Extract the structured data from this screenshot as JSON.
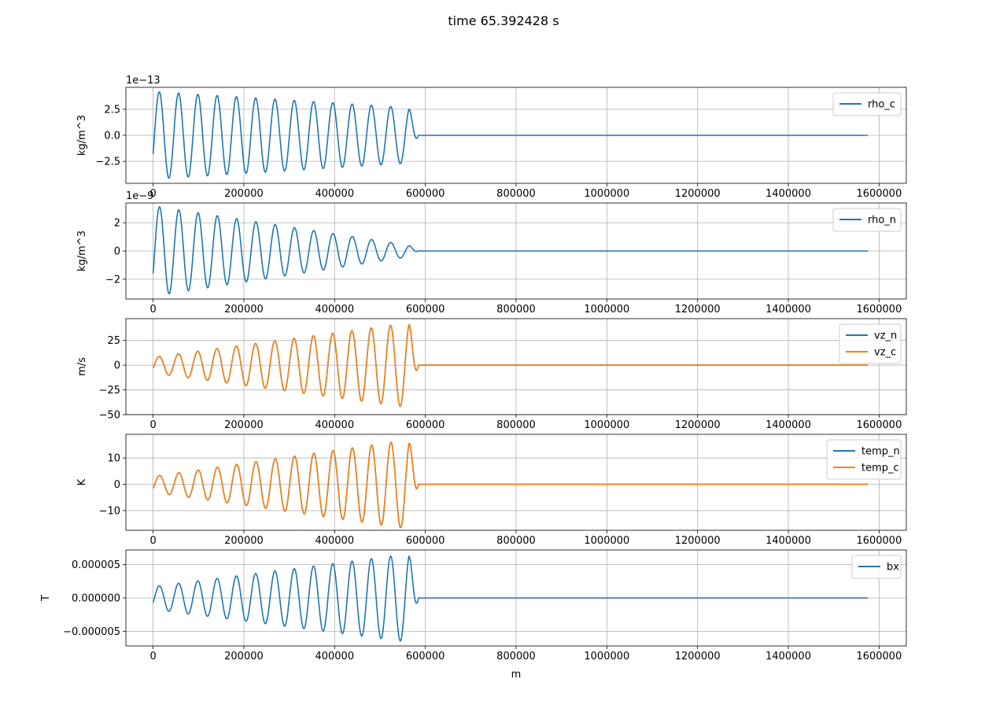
{
  "figure": {
    "title": "time 65.392428 s"
  },
  "chart_data": [
    {
      "type": "line",
      "ylabel": "kg/m^3",
      "xlabel": "",
      "offset_text": "1e−13",
      "xlim": [
        -60000,
        1660000
      ],
      "ylim": [
        -4.6,
        4.6
      ],
      "x_ticks": [
        0,
        200000,
        400000,
        600000,
        800000,
        1000000,
        1200000,
        1400000,
        1600000
      ],
      "y_ticks": [
        -2.5,
        0.0,
        2.5
      ],
      "y_tick_labels": [
        "−2.5",
        "0.0",
        "2.5"
      ],
      "grid": true,
      "legend": "upper right",
      "series": [
        {
          "name": "rho_c",
          "color": "#1f77b4",
          "wave": {
            "x_start": 0,
            "x_wave_end": 585000,
            "x_end": 1575000,
            "amp_start": 4.2,
            "amp_end": 2.6,
            "period": 42500,
            "start_value": -1.8
          }
        }
      ]
    },
    {
      "type": "line",
      "ylabel": "kg/m^3",
      "xlabel": "",
      "offset_text": "1e−9",
      "xlim": [
        -60000,
        1660000
      ],
      "ylim": [
        -3.4,
        3.4
      ],
      "x_ticks": [
        0,
        200000,
        400000,
        600000,
        800000,
        1000000,
        1200000,
        1400000,
        1600000
      ],
      "y_ticks": [
        -2,
        0,
        2
      ],
      "y_tick_labels": [
        "−2",
        "0",
        "2"
      ],
      "grid": true,
      "legend": "upper right",
      "series": [
        {
          "name": "rho_n",
          "color": "#1f77b4",
          "wave": {
            "x_start": 0,
            "x_wave_end": 585000,
            "x_end": 1575000,
            "amp_start": 3.2,
            "amp_end": 0.3,
            "period": 42500,
            "start_value": -1.6
          }
        }
      ]
    },
    {
      "type": "line",
      "ylabel": "m/s",
      "xlabel": "",
      "xlim": [
        -60000,
        1660000
      ],
      "ylim": [
        -50,
        47
      ],
      "x_ticks": [
        0,
        200000,
        400000,
        600000,
        800000,
        1000000,
        1200000,
        1400000,
        1600000
      ],
      "y_ticks": [
        -50,
        -25,
        0,
        25
      ],
      "y_tick_labels": [
        "−50",
        "−25",
        "0",
        "25"
      ],
      "grid": true,
      "legend": "upper right",
      "series": [
        {
          "name": "vz_n",
          "color": "#1f77b4",
          "wave": {
            "x_start": 0,
            "x_wave_end": 585000,
            "x_end": 1575000,
            "amp_start": 8,
            "amp_end": 44,
            "period": 42500,
            "start_value": -3
          }
        },
        {
          "name": "vz_c",
          "color": "#ff7f0e",
          "wave": {
            "x_start": 0,
            "x_wave_end": 585000,
            "x_end": 1575000,
            "amp_start": 8,
            "amp_end": 44,
            "period": 42500,
            "start_value": -3
          }
        }
      ]
    },
    {
      "type": "line",
      "ylabel": "K",
      "xlabel": "",
      "xlim": [
        -60000,
        1660000
      ],
      "ylim": [
        -17.5,
        19
      ],
      "x_ticks": [
        0,
        200000,
        400000,
        600000,
        800000,
        1000000,
        1200000,
        1400000,
        1600000
      ],
      "y_ticks": [
        -10,
        0,
        10
      ],
      "y_tick_labels": [
        "−10",
        "0",
        "10"
      ],
      "grid": true,
      "legend": "upper right",
      "series": [
        {
          "name": "temp_n",
          "color": "#1f77b4",
          "wave": {
            "x_start": 0,
            "x_wave_end": 585000,
            "x_end": 1575000,
            "amp_start": 3,
            "amp_end": 17.5,
            "period": 42500,
            "start_value": -1.5
          }
        },
        {
          "name": "temp_c",
          "color": "#ff7f0e",
          "wave": {
            "x_start": 0,
            "x_wave_end": 585000,
            "x_end": 1575000,
            "amp_start": 3,
            "amp_end": 17.5,
            "period": 42500,
            "start_value": -1.5
          }
        }
      ]
    },
    {
      "type": "line",
      "ylabel": "T",
      "xlabel": "m",
      "xlim": [
        -60000,
        1660000
      ],
      "ylim": [
        -7.2e-06,
        7.2e-06
      ],
      "x_ticks": [
        0,
        200000,
        400000,
        600000,
        800000,
        1000000,
        1200000,
        1400000,
        1600000
      ],
      "y_ticks": [
        -5e-06,
        0.0,
        5e-06
      ],
      "y_tick_labels": [
        "−0.000005",
        "0.000000",
        "0.000005"
      ],
      "grid": true,
      "legend": "upper right",
      "series": [
        {
          "name": "bx",
          "color": "#1f77b4",
          "wave": {
            "x_start": 0,
            "x_wave_end": 585000,
            "x_end": 1575000,
            "amp_start": 1.7e-06,
            "amp_end": 6.8e-06,
            "period": 42500,
            "start_value": -7e-07
          }
        }
      ]
    }
  ]
}
